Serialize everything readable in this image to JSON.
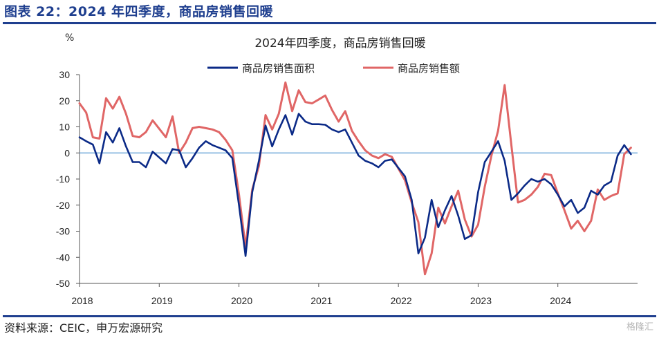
{
  "figure": {
    "title": "图表 22：2024 年四季度，商品房销售回暖",
    "source": "资料来源：CEIC，申万宏源研究",
    "watermark": "格隆汇"
  },
  "colors": {
    "header_blue": "#1f3f8f",
    "series_area": "#0b2a87",
    "series_amount": "#e06666",
    "zero_line": "#5b9bd5"
  },
  "chart_data": {
    "type": "line",
    "title": "2024年四季度，商品房销售回暖",
    "ylabel": "%",
    "xlabel": "",
    "ylim": [
      -50,
      30
    ],
    "yticks": [
      30,
      20,
      10,
      0,
      -10,
      -20,
      -30,
      -40,
      -50
    ],
    "xlim": [
      2018.0,
      2025.0
    ],
    "xticks": [
      2018,
      2019,
      2020,
      2021,
      2022,
      2023,
      2024
    ],
    "legend_position": "top-center",
    "grid": false,
    "x_unit": "year (monthly observations)",
    "series": [
      {
        "name": "商品房销售面积",
        "color": "#0b2a87",
        "points": [
          [
            2018.0,
            6.0
          ],
          [
            2018.083,
            4.5
          ],
          [
            2018.167,
            3.2
          ],
          [
            2018.25,
            -4.0
          ],
          [
            2018.333,
            8.0
          ],
          [
            2018.417,
            4.0
          ],
          [
            2018.5,
            9.5
          ],
          [
            2018.583,
            2.5
          ],
          [
            2018.667,
            -3.5
          ],
          [
            2018.75,
            -3.5
          ],
          [
            2018.833,
            -5.5
          ],
          [
            2018.917,
            0.5
          ],
          [
            2019.083,
            -4.0
          ],
          [
            2019.167,
            1.5
          ],
          [
            2019.25,
            1.0
          ],
          [
            2019.333,
            -5.5
          ],
          [
            2019.417,
            -2.0
          ],
          [
            2019.5,
            2.0
          ],
          [
            2019.583,
            4.5
          ],
          [
            2019.667,
            3.0
          ],
          [
            2019.75,
            2.0
          ],
          [
            2019.833,
            1.0
          ],
          [
            2019.917,
            -2.0
          ],
          [
            2020.0,
            -20.0
          ],
          [
            2020.083,
            -39.5
          ],
          [
            2020.167,
            -15.0
          ],
          [
            2020.25,
            -3.0
          ],
          [
            2020.333,
            10.5
          ],
          [
            2020.417,
            2.5
          ],
          [
            2020.5,
            9.0
          ],
          [
            2020.583,
            14.5
          ],
          [
            2020.667,
            7.0
          ],
          [
            2020.75,
            15.0
          ],
          [
            2020.833,
            12.0
          ],
          [
            2020.917,
            11.0
          ],
          [
            2021.0,
            11.0
          ],
          [
            2021.083,
            10.8
          ],
          [
            2021.167,
            9.0
          ],
          [
            2021.25,
            8.0
          ],
          [
            2021.333,
            9.0
          ],
          [
            2021.417,
            4.0
          ],
          [
            2021.5,
            -1.0
          ],
          [
            2021.583,
            -3.0
          ],
          [
            2021.667,
            -4.0
          ],
          [
            2021.75,
            -5.5
          ],
          [
            2021.833,
            -3.0
          ],
          [
            2021.917,
            -2.5
          ],
          [
            2022.083,
            -9.0
          ],
          [
            2022.167,
            -18.0
          ],
          [
            2022.25,
            -38.5
          ],
          [
            2022.333,
            -32.5
          ],
          [
            2022.417,
            -18.0
          ],
          [
            2022.5,
            -28.5
          ],
          [
            2022.583,
            -22.0
          ],
          [
            2022.667,
            -16.5
          ],
          [
            2022.75,
            -24.0
          ],
          [
            2022.833,
            -33.0
          ],
          [
            2022.917,
            -31.5
          ],
          [
            2023.0,
            -15.0
          ],
          [
            2023.083,
            -3.5
          ],
          [
            2023.167,
            0.5
          ],
          [
            2023.25,
            4.5
          ],
          [
            2023.333,
            -3.0
          ],
          [
            2023.417,
            -18.0
          ],
          [
            2023.5,
            -15.5
          ],
          [
            2023.583,
            -12.5
          ],
          [
            2023.667,
            -10.0
          ],
          [
            2023.75,
            -11.0
          ],
          [
            2023.833,
            -10.0
          ],
          [
            2023.917,
            -12.0
          ],
          [
            2024.0,
            -16.0
          ],
          [
            2024.083,
            -20.5
          ],
          [
            2024.167,
            -18.0
          ],
          [
            2024.25,
            -23.0
          ],
          [
            2024.333,
            -21.0
          ],
          [
            2024.417,
            -14.5
          ],
          [
            2024.5,
            -16.0
          ],
          [
            2024.583,
            -12.5
          ],
          [
            2024.667,
            -11.0
          ],
          [
            2024.75,
            -1.0
          ],
          [
            2024.833,
            3.0
          ],
          [
            2024.917,
            -0.5
          ]
        ]
      },
      {
        "name": "商品房销售额",
        "color": "#e06666",
        "points": [
          [
            2018.0,
            19.0
          ],
          [
            2018.083,
            15.5
          ],
          [
            2018.167,
            6.0
          ],
          [
            2018.25,
            5.5
          ],
          [
            2018.333,
            21.0
          ],
          [
            2018.417,
            17.0
          ],
          [
            2018.5,
            21.5
          ],
          [
            2018.583,
            15.0
          ],
          [
            2018.667,
            6.5
          ],
          [
            2018.75,
            6.0
          ],
          [
            2018.833,
            8.0
          ],
          [
            2018.917,
            12.5
          ],
          [
            2019.083,
            6.0
          ],
          [
            2019.167,
            14.0
          ],
          [
            2019.25,
            0.0
          ],
          [
            2019.333,
            4.0
          ],
          [
            2019.417,
            9.5
          ],
          [
            2019.5,
            10.0
          ],
          [
            2019.583,
            9.5
          ],
          [
            2019.667,
            9.0
          ],
          [
            2019.75,
            8.0
          ],
          [
            2019.833,
            5.0
          ],
          [
            2019.917,
            1.0
          ],
          [
            2020.0,
            -16.0
          ],
          [
            2020.083,
            -36.0
          ],
          [
            2020.167,
            -14.0
          ],
          [
            2020.25,
            -5.0
          ],
          [
            2020.333,
            14.5
          ],
          [
            2020.417,
            9.0
          ],
          [
            2020.5,
            15.0
          ],
          [
            2020.583,
            27.0
          ],
          [
            2020.667,
            16.0
          ],
          [
            2020.75,
            24.0
          ],
          [
            2020.833,
            19.5
          ],
          [
            2020.917,
            19.0
          ],
          [
            2021.0,
            20.5
          ],
          [
            2021.083,
            22.0
          ],
          [
            2021.167,
            16.5
          ],
          [
            2021.25,
            12.0
          ],
          [
            2021.333,
            16.0
          ],
          [
            2021.417,
            8.5
          ],
          [
            2021.5,
            4.5
          ],
          [
            2021.583,
            1.0
          ],
          [
            2021.667,
            -1.0
          ],
          [
            2021.75,
            -2.0
          ],
          [
            2021.833,
            -0.5
          ],
          [
            2021.917,
            -1.5
          ],
          [
            2022.083,
            -10.5
          ],
          [
            2022.167,
            -19.0
          ],
          [
            2022.25,
            -26.5
          ],
          [
            2022.333,
            -46.5
          ],
          [
            2022.417,
            -38.5
          ],
          [
            2022.5,
            -21.0
          ],
          [
            2022.583,
            -27.0
          ],
          [
            2022.667,
            -20.5
          ],
          [
            2022.75,
            -14.5
          ],
          [
            2022.833,
            -25.5
          ],
          [
            2022.917,
            -32.0
          ],
          [
            2023.0,
            -27.5
          ],
          [
            2023.083,
            -13.0
          ],
          [
            2023.167,
            -1.0
          ],
          [
            2023.25,
            8.5
          ],
          [
            2023.333,
            26.0
          ],
          [
            2023.417,
            3.0
          ],
          [
            2023.5,
            -19.0
          ],
          [
            2023.583,
            -18.0
          ],
          [
            2023.667,
            -16.0
          ],
          [
            2023.75,
            -13.0
          ],
          [
            2023.833,
            -8.0
          ],
          [
            2023.917,
            -8.5
          ],
          [
            2024.0,
            -15.5
          ],
          [
            2024.083,
            -22.0
          ],
          [
            2024.167,
            -29.0
          ],
          [
            2024.25,
            -26.0
          ],
          [
            2024.333,
            -30.0
          ],
          [
            2024.417,
            -26.0
          ],
          [
            2024.5,
            -14.0
          ],
          [
            2024.583,
            -18.0
          ],
          [
            2024.667,
            -16.5
          ],
          [
            2024.75,
            -15.5
          ],
          [
            2024.833,
            -0.5
          ],
          [
            2024.917,
            2.0
          ]
        ]
      }
    ]
  }
}
